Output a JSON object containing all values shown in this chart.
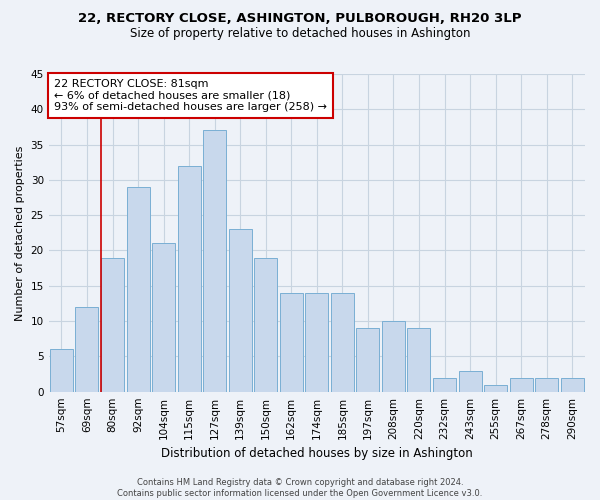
{
  "title": "22, RECTORY CLOSE, ASHINGTON, PULBOROUGH, RH20 3LP",
  "subtitle": "Size of property relative to detached houses in Ashington",
  "xlabel": "Distribution of detached houses by size in Ashington",
  "ylabel": "Number of detached properties",
  "categories": [
    "57sqm",
    "69sqm",
    "80sqm",
    "92sqm",
    "104sqm",
    "115sqm",
    "127sqm",
    "139sqm",
    "150sqm",
    "162sqm",
    "174sqm",
    "185sqm",
    "197sqm",
    "208sqm",
    "220sqm",
    "232sqm",
    "243sqm",
    "255sqm",
    "267sqm",
    "278sqm",
    "290sqm"
  ],
  "values": [
    6,
    12,
    19,
    29,
    21,
    32,
    37,
    23,
    19,
    14,
    14,
    14,
    9,
    10,
    9,
    2,
    3,
    1,
    2,
    2,
    2
  ],
  "bar_color": "#c8d8ec",
  "bar_edge_color": "#7aafd4",
  "grid_color": "#c8d4e0",
  "background_color": "#eef2f8",
  "marker_line_color": "#cc0000",
  "annotation_text_line1": "22 RECTORY CLOSE: 81sqm",
  "annotation_text_line2": "← 6% of detached houses are smaller (18)",
  "annotation_text_line3": "93% of semi-detached houses are larger (258) →",
  "annotation_box_color": "#ffffff",
  "annotation_box_edge_color": "#cc0000",
  "footer_line1": "Contains HM Land Registry data © Crown copyright and database right 2024.",
  "footer_line2": "Contains public sector information licensed under the Open Government Licence v3.0.",
  "ylim": [
    0,
    45
  ],
  "yticks": [
    0,
    5,
    10,
    15,
    20,
    25,
    30,
    35,
    40,
    45
  ],
  "title_fontsize": 9.5,
  "subtitle_fontsize": 8.5,
  "xlabel_fontsize": 8.5,
  "ylabel_fontsize": 8,
  "tick_fontsize": 7.5,
  "footer_fontsize": 6,
  "annotation_fontsize": 8
}
